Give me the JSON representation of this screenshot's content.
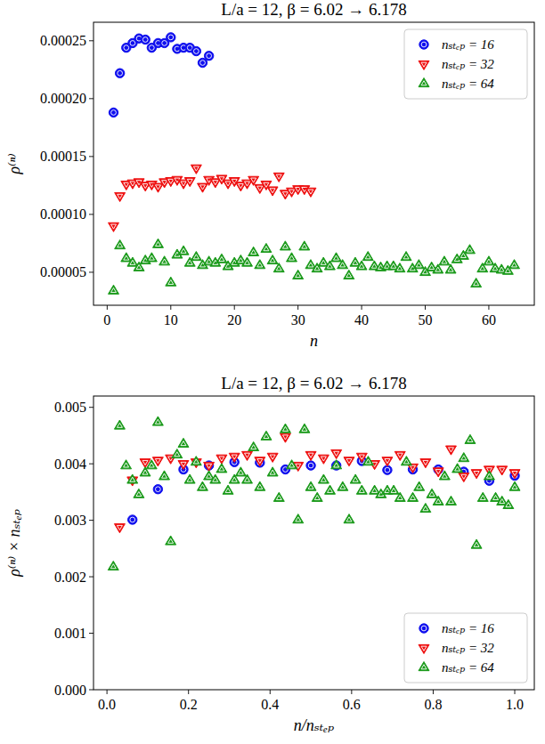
{
  "chart_data": [
    {
      "type": "scatter",
      "title": "L/a = 12, β = 6.02 → 6.178",
      "x_label": "n",
      "y_label": "ρ⁽ⁿ⁾",
      "xlim": [
        -2.15,
        67.15
      ],
      "xticks": [
        0,
        10,
        20,
        30,
        40,
        50,
        60
      ],
      "ylim": [
        2.15e-05,
        0.000266
      ],
      "yticks": [
        5e-05,
        {
          "value": 0.0001,
          "label": "0.00010"
        },
        0.00015,
        {
          "value": 0.0002,
          "label": "0.00020"
        },
        0.00025
      ],
      "grid": false,
      "legend": "upper right",
      "series": [
        {
          "name": "nₛₜₑₚ = 16",
          "color": "#1010ee",
          "marker": "circle",
          "x": [
            1,
            2,
            3,
            4,
            5,
            6,
            7,
            8,
            9,
            10,
            11,
            12,
            13,
            14,
            15,
            16
          ],
          "values": [
            0.000188,
            0.000222,
            0.000244,
            0.000248,
            0.000252,
            0.000251,
            0.000244,
            0.000248,
            0.000248,
            0.000253,
            0.000243,
            0.000244,
            0.000244,
            0.000241,
            0.000231,
            0.000237
          ]
        },
        {
          "name": "nₛₜₑₚ = 32",
          "color": "#ee1111",
          "marker": "triangle_down",
          "x": [
            1,
            2,
            3,
            4,
            5,
            6,
            7,
            8,
            9,
            10,
            11,
            12,
            13,
            14,
            15,
            16,
            17,
            18,
            19,
            20,
            21,
            22,
            23,
            24,
            25,
            26,
            27,
            28,
            29,
            30,
            31,
            32
          ],
          "values": [
            9e-05,
            0.000116,
            0.000126,
            0.000127,
            0.000128,
            0.000125,
            0.000126,
            0.000124,
            0.000128,
            0.000129,
            0.00013,
            0.000127,
            0.000129,
            0.00014,
            0.000124,
            0.00013,
            0.000128,
            0.000131,
            0.000127,
            0.000129,
            0.000125,
            0.000127,
            0.00013,
            0.000123,
            0.000126,
            0.000121,
            0.000133,
            0.000118,
            0.00012,
            0.000122,
            0.000122,
            0.00012
          ]
        },
        {
          "name": "nₛₜₑₚ = 64",
          "color": "#1a9a1a",
          "marker": "triangle_up",
          "x": [
            1,
            2,
            3,
            4,
            5,
            6,
            7,
            8,
            9,
            10,
            11,
            12,
            13,
            14,
            15,
            16,
            17,
            18,
            19,
            20,
            21,
            22,
            23,
            24,
            25,
            26,
            27,
            28,
            29,
            30,
            31,
            32,
            33,
            34,
            35,
            36,
            37,
            38,
            39,
            40,
            41,
            42,
            43,
            44,
            45,
            46,
            47,
            48,
            49,
            50,
            51,
            52,
            53,
            54,
            55,
            56,
            57,
            58,
            59,
            60,
            61,
            62,
            63,
            64
          ],
          "values": [
            3.4e-05,
            7.3e-05,
            6.2e-05,
            5.8e-05,
            5.4e-05,
            6e-05,
            6.2e-05,
            7.4e-05,
            5.9e-05,
            4.1e-05,
            6.5e-05,
            6.8e-05,
            5.8e-05,
            6.3e-05,
            5.6e-05,
            5.9e-05,
            5.8e-05,
            6.1e-05,
            5.5e-05,
            5.8e-05,
            6e-05,
            5.8e-05,
            6.7e-05,
            5.6e-05,
            7e-05,
            6e-05,
            5.3e-05,
            7.2e-05,
            6.2e-05,
            4.7e-05,
            7.2e-05,
            5.6e-05,
            5.3e-05,
            5.8e-05,
            5.5e-05,
            6.2e-05,
            5.6e-05,
            4.7e-05,
            5.8e-05,
            5.5e-05,
            6.3e-05,
            5.5e-05,
            5.4e-05,
            5.5e-05,
            5.5e-05,
            5.3e-05,
            6.3e-05,
            5.3e-05,
            5.6e-05,
            5e-05,
            5.4e-05,
            5.2e-05,
            5.9e-05,
            5.2e-05,
            6.1e-05,
            6.4e-05,
            6.9e-05,
            4e-05,
            5.3e-05,
            5.9e-05,
            5.3e-05,
            5.2e-05,
            5.1e-05,
            5.6e-05
          ]
        }
      ]
    },
    {
      "type": "scatter",
      "title": "L/a = 12, β = 6.02 → 6.178",
      "x_label": "n/nₛₜₑₚ",
      "y_label": "ρ⁽ⁿ⁾ × nₛₜₑₚ",
      "xlim": [
        -0.033,
        1.048
      ],
      "xticks": [
        {
          "value": 0,
          "label": "0.0"
        },
        0.2,
        0.4,
        0.6,
        0.8,
        {
          "value": 1,
          "label": "1.0"
        }
      ],
      "ylim": [
        0,
        0.0052
      ],
      "yticks": [
        {
          "value": 0,
          "label": "0.000"
        },
        0.001,
        0.002,
        0.003,
        0.004,
        0.005
      ],
      "grid": false,
      "legend": "lower right",
      "series": [
        {
          "name": "nₛₜₑₚ = 16",
          "color": "#1010ee",
          "marker": "circle",
          "x": [
            0.0625,
            0.125,
            0.1875,
            0.25,
            0.3125,
            0.375,
            0.4375,
            0.5,
            0.5625,
            0.625,
            0.6875,
            0.75,
            0.8125,
            0.875,
            0.9375,
            1
          ],
          "values": [
            0.00301,
            0.00355,
            0.0039,
            0.00397,
            0.00403,
            0.00402,
            0.0039,
            0.00397,
            0.00397,
            0.00405,
            0.00389,
            0.0039,
            0.0039,
            0.00386,
            0.0037,
            0.00379
          ]
        },
        {
          "name": "nₛₜₑₚ = 32",
          "color": "#ee1111",
          "marker": "triangle_down",
          "x": [
            0.03125,
            0.0625,
            0.09375,
            0.125,
            0.15625,
            0.1875,
            0.21875,
            0.25,
            0.28125,
            0.3125,
            0.34375,
            0.375,
            0.40625,
            0.4375,
            0.46875,
            0.5,
            0.53125,
            0.5625,
            0.59375,
            0.625,
            0.65625,
            0.6875,
            0.71875,
            0.75,
            0.78125,
            0.8125,
            0.84375,
            0.875,
            0.90625,
            0.9375,
            0.96875,
            1
          ],
          "values": [
            0.00288,
            0.00371,
            0.00403,
            0.00406,
            0.0041,
            0.004,
            0.00403,
            0.00397,
            0.0041,
            0.00413,
            0.00416,
            0.00406,
            0.00413,
            0.00448,
            0.00397,
            0.00416,
            0.0041,
            0.00419,
            0.00406,
            0.00413,
            0.004,
            0.00406,
            0.00416,
            0.00394,
            0.00403,
            0.00387,
            0.00426,
            0.00378,
            0.00384,
            0.0039,
            0.0039,
            0.00384
          ]
        },
        {
          "name": "nₛₜₑₚ = 64",
          "color": "#1a9a1a",
          "marker": "triangle_up",
          "x": [
            0.015625,
            0.03125,
            0.046875,
            0.0625,
            0.078125,
            0.09375,
            0.109375,
            0.125,
            0.140625,
            0.15625,
            0.171875,
            0.1875,
            0.203125,
            0.21875,
            0.234375,
            0.25,
            0.265625,
            0.28125,
            0.296875,
            0.3125,
            0.328125,
            0.34375,
            0.359375,
            0.375,
            0.390625,
            0.40625,
            0.421875,
            0.4375,
            0.453125,
            0.46875,
            0.484375,
            0.5,
            0.515625,
            0.53125,
            0.546875,
            0.5625,
            0.578125,
            0.59375,
            0.609375,
            0.625,
            0.640625,
            0.65625,
            0.671875,
            0.6875,
            0.703125,
            0.71875,
            0.734375,
            0.75,
            0.765625,
            0.78125,
            0.796875,
            0.8125,
            0.828125,
            0.84375,
            0.859375,
            0.875,
            0.890625,
            0.90625,
            0.921875,
            0.9375,
            0.953125,
            0.96875,
            0.984375,
            1
          ],
          "values": [
            0.002176,
            0.004672,
            0.003968,
            0.003712,
            0.003456,
            0.00384,
            0.003968,
            0.004736,
            0.003776,
            0.002624,
            0.00416,
            0.004352,
            0.003712,
            0.004032,
            0.003584,
            0.003776,
            0.003712,
            0.003904,
            0.00352,
            0.003712,
            0.00384,
            0.003712,
            0.004288,
            0.003584,
            0.00448,
            0.00384,
            0.003392,
            0.004608,
            0.003968,
            0.003008,
            0.004608,
            0.003584,
            0.003392,
            0.003712,
            0.00352,
            0.003968,
            0.003584,
            0.003008,
            0.003712,
            0.00352,
            0.004032,
            0.00352,
            0.003456,
            0.00352,
            0.00352,
            0.003392,
            0.004032,
            0.003392,
            0.003584,
            0.0032,
            0.003456,
            0.003328,
            0.003776,
            0.003328,
            0.003904,
            0.004096,
            0.004416,
            0.00256,
            0.003392,
            0.003776,
            0.003392,
            0.003328,
            0.003264,
            0.003584
          ]
        }
      ]
    }
  ]
}
